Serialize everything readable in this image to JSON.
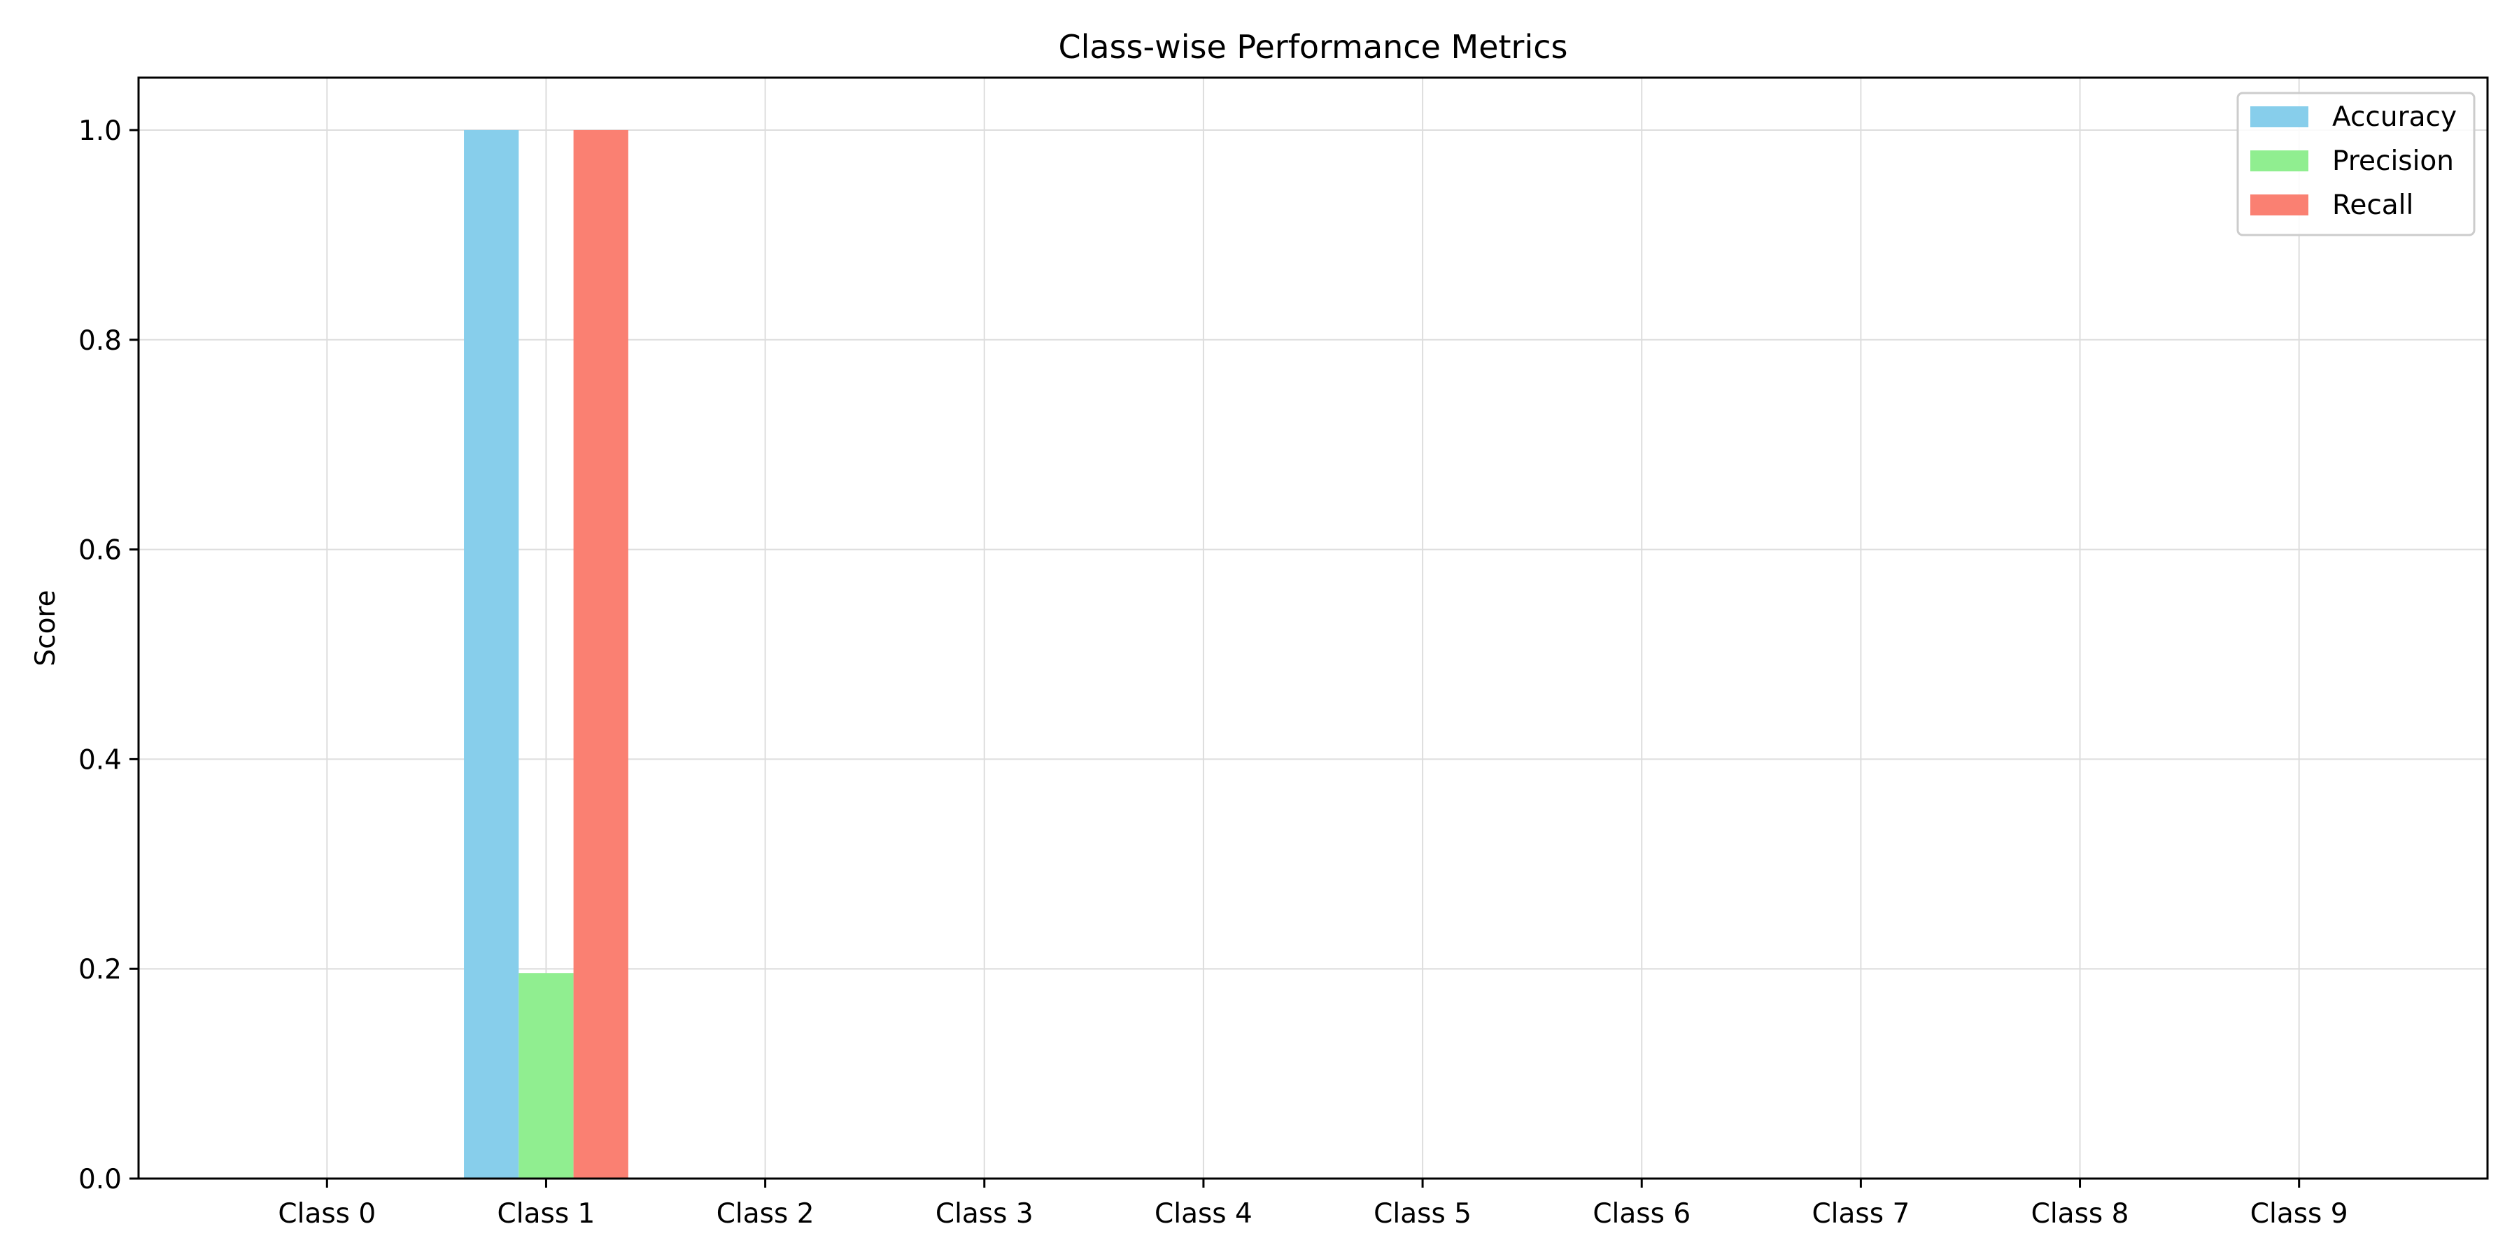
{
  "chart_data": {
    "type": "bar",
    "title": "Class-wise Performance Metrics",
    "xlabel": "",
    "ylabel": "Score",
    "categories": [
      "Class 0",
      "Class 1",
      "Class 2",
      "Class 3",
      "Class 4",
      "Class 5",
      "Class 6",
      "Class 7",
      "Class 8",
      "Class 9"
    ],
    "series": [
      {
        "name": "Accuracy",
        "color": "#87ceeb",
        "values": [
          0,
          1.0,
          0,
          0,
          0,
          0,
          0,
          0,
          0,
          0
        ]
      },
      {
        "name": "Precision",
        "color": "#90ee90",
        "values": [
          0,
          0.196,
          0,
          0,
          0,
          0,
          0,
          0,
          0,
          0
        ]
      },
      {
        "name": "Recall",
        "color": "#fa8072",
        "values": [
          0,
          1.0,
          0,
          0,
          0,
          0,
          0,
          0,
          0,
          0
        ]
      }
    ],
    "ylim": [
      0,
      1.05
    ],
    "yticks": [
      "0.0",
      "0.2",
      "0.4",
      "0.6",
      "0.8",
      "1.0"
    ],
    "grid": true,
    "legend_position": "top-right"
  }
}
